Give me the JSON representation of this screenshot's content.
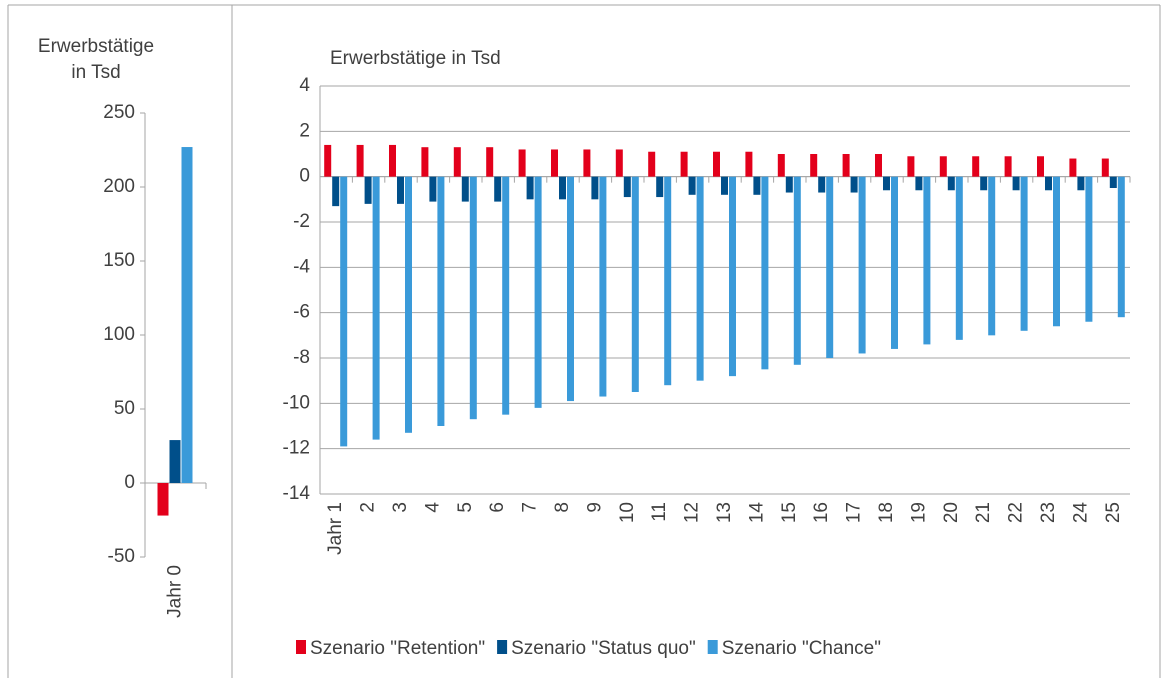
{
  "chart_data": [
    {
      "type": "bar",
      "title": "Erwerbstätige in Tsd",
      "categories": [
        "Jahr 0"
      ],
      "series": [
        {
          "color": "#e3001b",
          "values": [
            -22
          ]
        },
        {
          "color": "#004f8a",
          "values": [
            29
          ]
        },
        {
          "color": "#3a9ad9",
          "values": [
            227
          ]
        }
      ],
      "ylim": [
        -50,
        250
      ],
      "yticks": [
        -50,
        0,
        50,
        100,
        150,
        200,
        250
      ],
      "grid": false
    },
    {
      "type": "bar",
      "title": "Erwerbstätige in Tsd",
      "categories": [
        "Jahr 1",
        "2",
        "3",
        "4",
        "5",
        "6",
        "7",
        "8",
        "9",
        "10",
        "11",
        "12",
        "13",
        "14",
        "15",
        "16",
        "17",
        "18",
        "19",
        "20",
        "21",
        "22",
        "23",
        "24",
        "25"
      ],
      "series": [
        {
          "name": "Szenario \"Retention\"",
          "color": "#e3001b",
          "values": [
            1.4,
            1.4,
            1.4,
            1.3,
            1.3,
            1.3,
            1.2,
            1.2,
            1.2,
            1.2,
            1.1,
            1.1,
            1.1,
            1.1,
            1.0,
            1.0,
            1.0,
            1.0,
            0.9,
            0.9,
            0.9,
            0.9,
            0.9,
            0.8,
            0.8
          ]
        },
        {
          "name": "Szenario \"Status quo\"",
          "color": "#004f8a",
          "values": [
            -1.3,
            -1.2,
            -1.2,
            -1.1,
            -1.1,
            -1.1,
            -1.0,
            -1.0,
            -1.0,
            -0.9,
            -0.9,
            -0.8,
            -0.8,
            -0.8,
            -0.7,
            -0.7,
            -0.7,
            -0.6,
            -0.6,
            -0.6,
            -0.6,
            -0.6,
            -0.6,
            -0.6,
            -0.5
          ]
        },
        {
          "name": "Szenario \"Chance\"",
          "color": "#3a9ad9",
          "values": [
            -11.9,
            -11.6,
            -11.3,
            -11.0,
            -10.7,
            -10.5,
            -10.2,
            -9.9,
            -9.7,
            -9.5,
            -9.2,
            -9.0,
            -8.8,
            -8.5,
            -8.3,
            -8.0,
            -7.8,
            -7.6,
            -7.4,
            -7.2,
            -7.0,
            -6.8,
            -6.6,
            -6.4,
            -6.2
          ]
        }
      ],
      "ylim": [
        -14,
        4
      ],
      "yticks": [
        -14,
        -12,
        -10,
        -8,
        -6,
        -4,
        -2,
        0,
        2,
        4
      ],
      "grid": true
    }
  ]
}
